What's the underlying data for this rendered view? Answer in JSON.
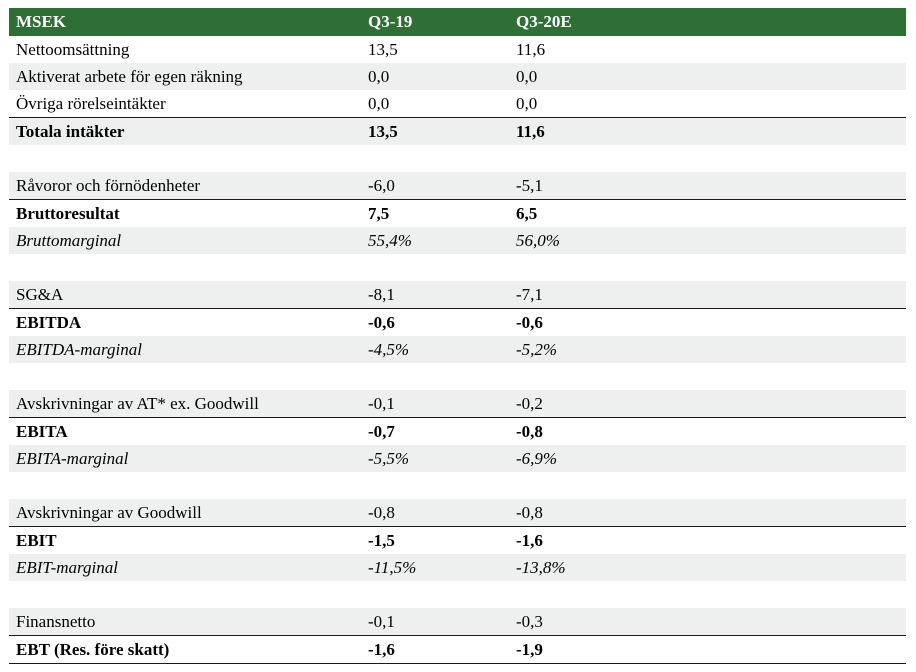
{
  "header": {
    "label": "MSEK",
    "col1": "Q3-19",
    "col2": "Q3-20E"
  },
  "rows": [
    {
      "label": "Nettoomsättning",
      "v1": "13,5",
      "v2": "11,6",
      "style": "normal"
    },
    {
      "label": "Aktiverat arbete för egen räkning",
      "v1": "0,0",
      "v2": "0,0",
      "style": "normal"
    },
    {
      "label": "Övriga rörelseintäkter",
      "v1": "0,0",
      "v2": "0,0",
      "style": "normal"
    },
    {
      "label": "Totala intäkter",
      "v1": "13,5",
      "v2": "11,6",
      "style": "bold"
    },
    {
      "label": "",
      "v1": "",
      "v2": "",
      "style": "blank"
    },
    {
      "label": "Råvoror och förnödenheter",
      "v1": "-6,0",
      "v2": "-5,1",
      "style": "normal"
    },
    {
      "label": "Bruttoresultat",
      "v1": "7,5",
      "v2": "6,5",
      "style": "bold"
    },
    {
      "label": "Bruttomarginal",
      "v1": "55,4%",
      "v2": "56,0%",
      "style": "italic"
    },
    {
      "label": "",
      "v1": "",
      "v2": "",
      "style": "blank"
    },
    {
      "label": "SG&A",
      "v1": "-8,1",
      "v2": "-7,1",
      "style": "normal"
    },
    {
      "label": "EBITDA",
      "v1": "-0,6",
      "v2": "-0,6",
      "style": "bold"
    },
    {
      "label": "EBITDA-marginal",
      "v1": "-4,5%",
      "v2": "-5,2%",
      "style": "italic"
    },
    {
      "label": "",
      "v1": "",
      "v2": "",
      "style": "blank"
    },
    {
      "label": "Avskrivningar av AT* ex. Goodwill",
      "v1": "-0,1",
      "v2": "-0,2",
      "style": "normal"
    },
    {
      "label": "EBITA",
      "v1": "-0,7",
      "v2": "-0,8",
      "style": "bold"
    },
    {
      "label": "EBITA-marginal",
      "v1": "-5,5%",
      "v2": "-6,9%",
      "style": "italic"
    },
    {
      "label": "",
      "v1": "",
      "v2": "",
      "style": "blank"
    },
    {
      "label": "Avskrivningar av Goodwill",
      "v1": "-0,8",
      "v2": "-0,8",
      "style": "normal"
    },
    {
      "label": "EBIT",
      "v1": "-1,5",
      "v2": "-1,6",
      "style": "bold"
    },
    {
      "label": "EBIT-marginal",
      "v1": "-11,5%",
      "v2": "-13,8%",
      "style": "italic"
    },
    {
      "label": "",
      "v1": "",
      "v2": "",
      "style": "blank"
    },
    {
      "label": "Finansnetto",
      "v1": "-0,1",
      "v2": "-0,3",
      "style": "normal"
    },
    {
      "label": "EBT (Res. före skatt)",
      "v1": "-1,6",
      "v2": "-1,9",
      "style": "bold"
    }
  ],
  "colors": {
    "header_bg": "#2f6e34",
    "stripe_bg": "#eef0ef",
    "rule": "#1a1a1a"
  }
}
